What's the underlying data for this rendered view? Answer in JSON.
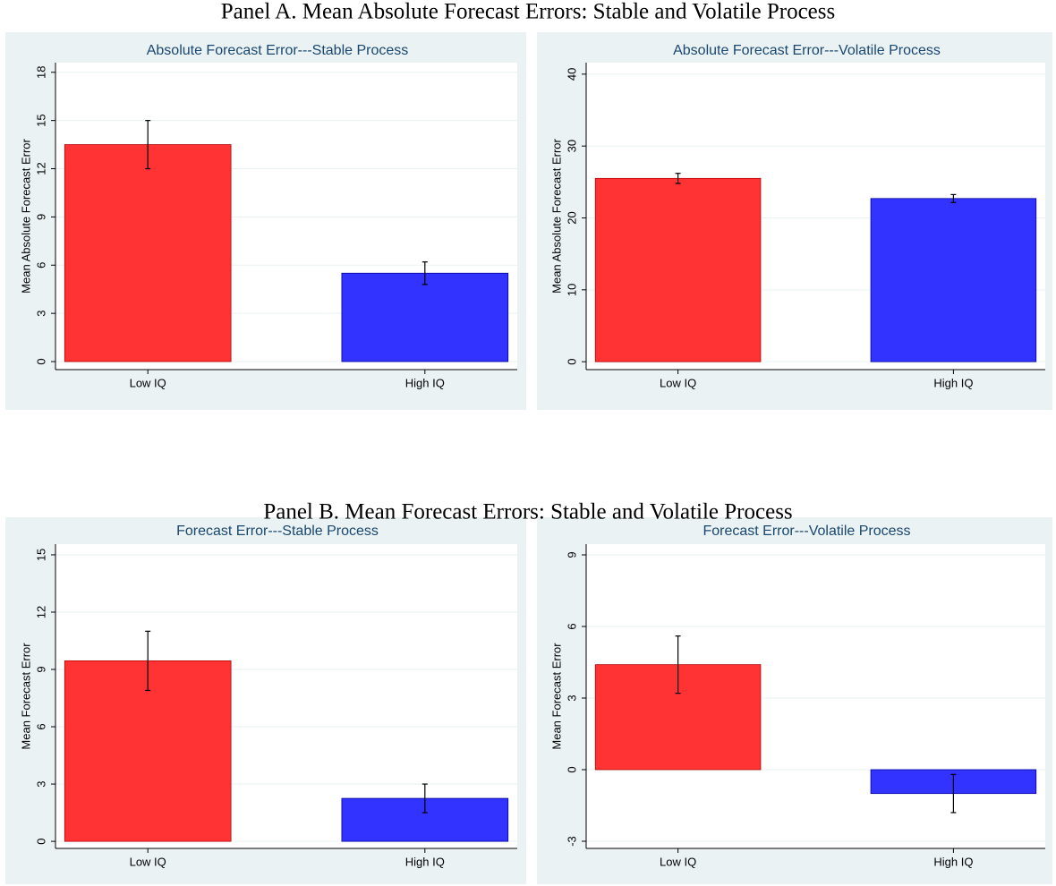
{
  "panel_titles": [
    "Panel A. Mean Absolute Forecast Errors: Stable and Volatile Process",
    "Panel B. Mean Forecast Errors: Stable and Volatile Process"
  ],
  "chart_data": [
    {
      "type": "bar",
      "title": "Absolute Forecast Error---Stable Process",
      "ylabel": "Mean Absolute Forecast Error",
      "categories": [
        "Low IQ",
        "High IQ"
      ],
      "values": [
        13.5,
        5.5
      ],
      "errors": [
        1.5,
        0.7
      ],
      "colors": [
        "#ff3333",
        "#3333ff"
      ],
      "ylim": [
        -0.5,
        18.6
      ],
      "yticks": [
        0,
        3,
        6,
        9,
        12,
        15,
        18
      ],
      "grid": true
    },
    {
      "type": "bar",
      "title": "Absolute Forecast Error---Volatile Process",
      "ylabel": "Mean Absolute Forecast Error",
      "categories": [
        "Low IQ",
        "High IQ"
      ],
      "values": [
        25.5,
        22.7
      ],
      "errors": [
        0.7,
        0.55
      ],
      "colors": [
        "#ff3333",
        "#3333ff"
      ],
      "ylim": [
        -1.1,
        41.6
      ],
      "yticks": [
        0,
        10,
        20,
        30,
        40
      ],
      "grid": true
    },
    {
      "type": "bar",
      "title": "Forecast Error---Stable Process",
      "ylabel": "Mean Forecast Error",
      "categories": [
        "Low IQ",
        "High IQ"
      ],
      "values": [
        9.45,
        2.25
      ],
      "errors": [
        1.55,
        0.75
      ],
      "colors": [
        "#ff3333",
        "#3333ff"
      ],
      "ylim": [
        -0.37,
        15.56
      ],
      "yticks": [
        0,
        3,
        6,
        9,
        12,
        15
      ],
      "grid": true
    },
    {
      "type": "bar",
      "title": "Forecast Error---Volatile Process",
      "ylabel": "Mean Forecast Error",
      "categories": [
        "Low IQ",
        "High IQ"
      ],
      "values": [
        4.4,
        -1.0
      ],
      "errors": [
        1.2,
        0.8
      ],
      "colors": [
        "#ff3333",
        "#3333ff"
      ],
      "ylim": [
        -3.3,
        9.45
      ],
      "yticks": [
        -3,
        0,
        3,
        6,
        9
      ],
      "grid": true
    }
  ]
}
